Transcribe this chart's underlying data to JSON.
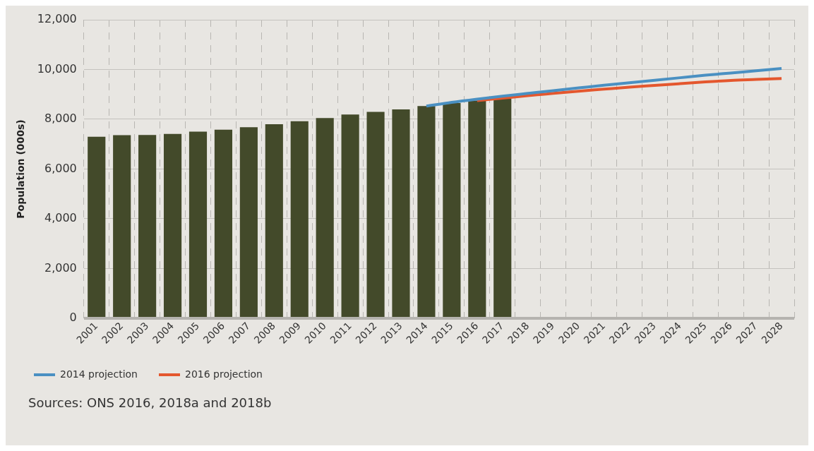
{
  "chart_data": {
    "type": "bar",
    "ylabel": "Population (000s)",
    "categories": [
      "2001",
      "2002",
      "2003",
      "2004",
      "2005",
      "2006",
      "2007",
      "2008",
      "2009",
      "2010",
      "2011",
      "2012",
      "2013",
      "2014",
      "2015",
      "2016",
      "2017",
      "2018",
      "2019",
      "2020",
      "2021",
      "2022",
      "2023",
      "2024",
      "2025",
      "2026",
      "2027",
      "2028"
    ],
    "series": [
      {
        "color": "#434a2a",
        "values": [
          7300,
          7360,
          7370,
          7410,
          7500,
          7580,
          7680,
          7800,
          7920,
          8050,
          8190,
          8300,
          8400,
          8530,
          8650,
          8750,
          8820,
          null,
          null,
          null,
          null,
          null,
          null,
          null,
          null,
          null,
          null,
          null
        ]
      },
      {
        "type": "line",
        "name": "2014 projection",
        "color": "#4a90c2",
        "values": [
          null,
          null,
          null,
          null,
          null,
          null,
          null,
          null,
          null,
          null,
          null,
          null,
          null,
          8530,
          8680,
          8810,
          8930,
          9040,
          9150,
          9260,
          9370,
          9470,
          9570,
          9670,
          9770,
          9860,
          9950,
          10040
        ]
      },
      {
        "type": "line",
        "name": "2016 projection",
        "color": "#e4572e",
        "values": [
          null,
          null,
          null,
          null,
          null,
          null,
          null,
          null,
          null,
          null,
          null,
          null,
          null,
          null,
          null,
          8750,
          8850,
          8950,
          9040,
          9130,
          9210,
          9290,
          9360,
          9430,
          9500,
          9560,
          9600,
          9640
        ]
      }
    ],
    "ylim": [
      0,
      12000
    ],
    "yticks": [
      0,
      {
        "value": 2000,
        "label": "2,000"
      },
      {
        "value": 4000,
        "label": "4,000"
      },
      {
        "value": 6000,
        "label": "6,000"
      },
      {
        "value": 8000,
        "label": "8,000"
      },
      {
        "value": 10000,
        "label": "10,000"
      },
      {
        "value": 12000,
        "label": "12,000"
      }
    ],
    "grid": true,
    "legend": "bottom left",
    "marker": "none",
    "annotations": [
      "Sources: ONS 2016, 2018a and 2018b"
    ]
  }
}
